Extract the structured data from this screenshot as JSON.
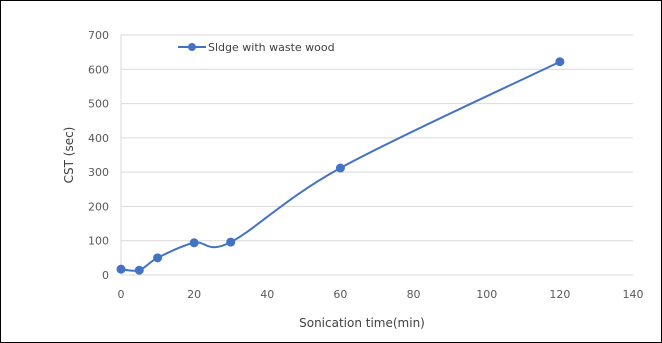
{
  "chart_data": {
    "type": "line",
    "title": "",
    "xlabel": "Sonication time(min)",
    "ylabel": "CST (sec)",
    "xlim": [
      0,
      140
    ],
    "ylim": [
      0,
      700
    ],
    "xticks": [
      0,
      20,
      40,
      60,
      80,
      100,
      120,
      140
    ],
    "yticks": [
      0,
      100,
      200,
      300,
      400,
      500,
      600,
      700
    ],
    "grid": "horizontal",
    "legend_position": "top-left",
    "smooth": true,
    "series": [
      {
        "name": "Sldge with waste wood",
        "color": "#4472c4",
        "marker": "circle",
        "x": [
          0,
          5,
          10,
          20,
          30,
          60,
          120
        ],
        "y": [
          17,
          14,
          50,
          94,
          96,
          312,
          622
        ]
      }
    ]
  }
}
